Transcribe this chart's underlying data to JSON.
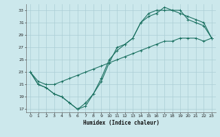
{
  "xlabel": "Humidex (Indice chaleur)",
  "bg_color": "#cce8ec",
  "grid_color": "#aacdd4",
  "line_color": "#1a7060",
  "xlim": [
    -0.5,
    23.5
  ],
  "ylim": [
    16.5,
    34
  ],
  "yticks": [
    17,
    19,
    21,
    23,
    25,
    27,
    29,
    31,
    33
  ],
  "xticks": [
    0,
    1,
    2,
    3,
    4,
    5,
    6,
    7,
    8,
    9,
    10,
    11,
    12,
    13,
    14,
    15,
    16,
    17,
    18,
    19,
    20,
    21,
    22,
    23
  ],
  "curve1_x": [
    0,
    1,
    2,
    3,
    4,
    5,
    6,
    7,
    8,
    9,
    10,
    11,
    12,
    13,
    14,
    15,
    16,
    17,
    18,
    19,
    20,
    21,
    22,
    23
  ],
  "curve1_y": [
    23,
    21,
    20.5,
    19.5,
    19,
    18,
    17,
    18,
    19.5,
    21.5,
    24.5,
    27,
    27.5,
    28.5,
    31,
    32,
    32.5,
    33.5,
    33,
    33,
    31.5,
    31,
    30.5,
    28.5
  ],
  "curve2_x": [
    0,
    1,
    2,
    3,
    4,
    5,
    6,
    7,
    8,
    9,
    10,
    11,
    12,
    13,
    14,
    15,
    16,
    17,
    18,
    19,
    20,
    21,
    22,
    23
  ],
  "curve2_y": [
    23,
    21,
    20.5,
    19.5,
    19,
    18,
    17,
    17.5,
    19.5,
    22,
    25,
    26.5,
    27.5,
    28.5,
    31,
    32.5,
    33,
    33,
    33,
    32.5,
    32,
    31.5,
    31,
    28.5
  ],
  "curve3_x": [
    0,
    1,
    2,
    3,
    4,
    5,
    6,
    7,
    8,
    9,
    10,
    11,
    12,
    13,
    14,
    15,
    16,
    17,
    18,
    19,
    20,
    21,
    22,
    23
  ],
  "curve3_y": [
    23,
    21.5,
    21,
    21,
    21.5,
    22,
    22.5,
    23,
    23.5,
    24,
    24.5,
    25,
    25.5,
    26,
    26.5,
    27,
    27.5,
    28,
    28,
    28.5,
    28.5,
    28.5,
    28,
    28.5
  ]
}
